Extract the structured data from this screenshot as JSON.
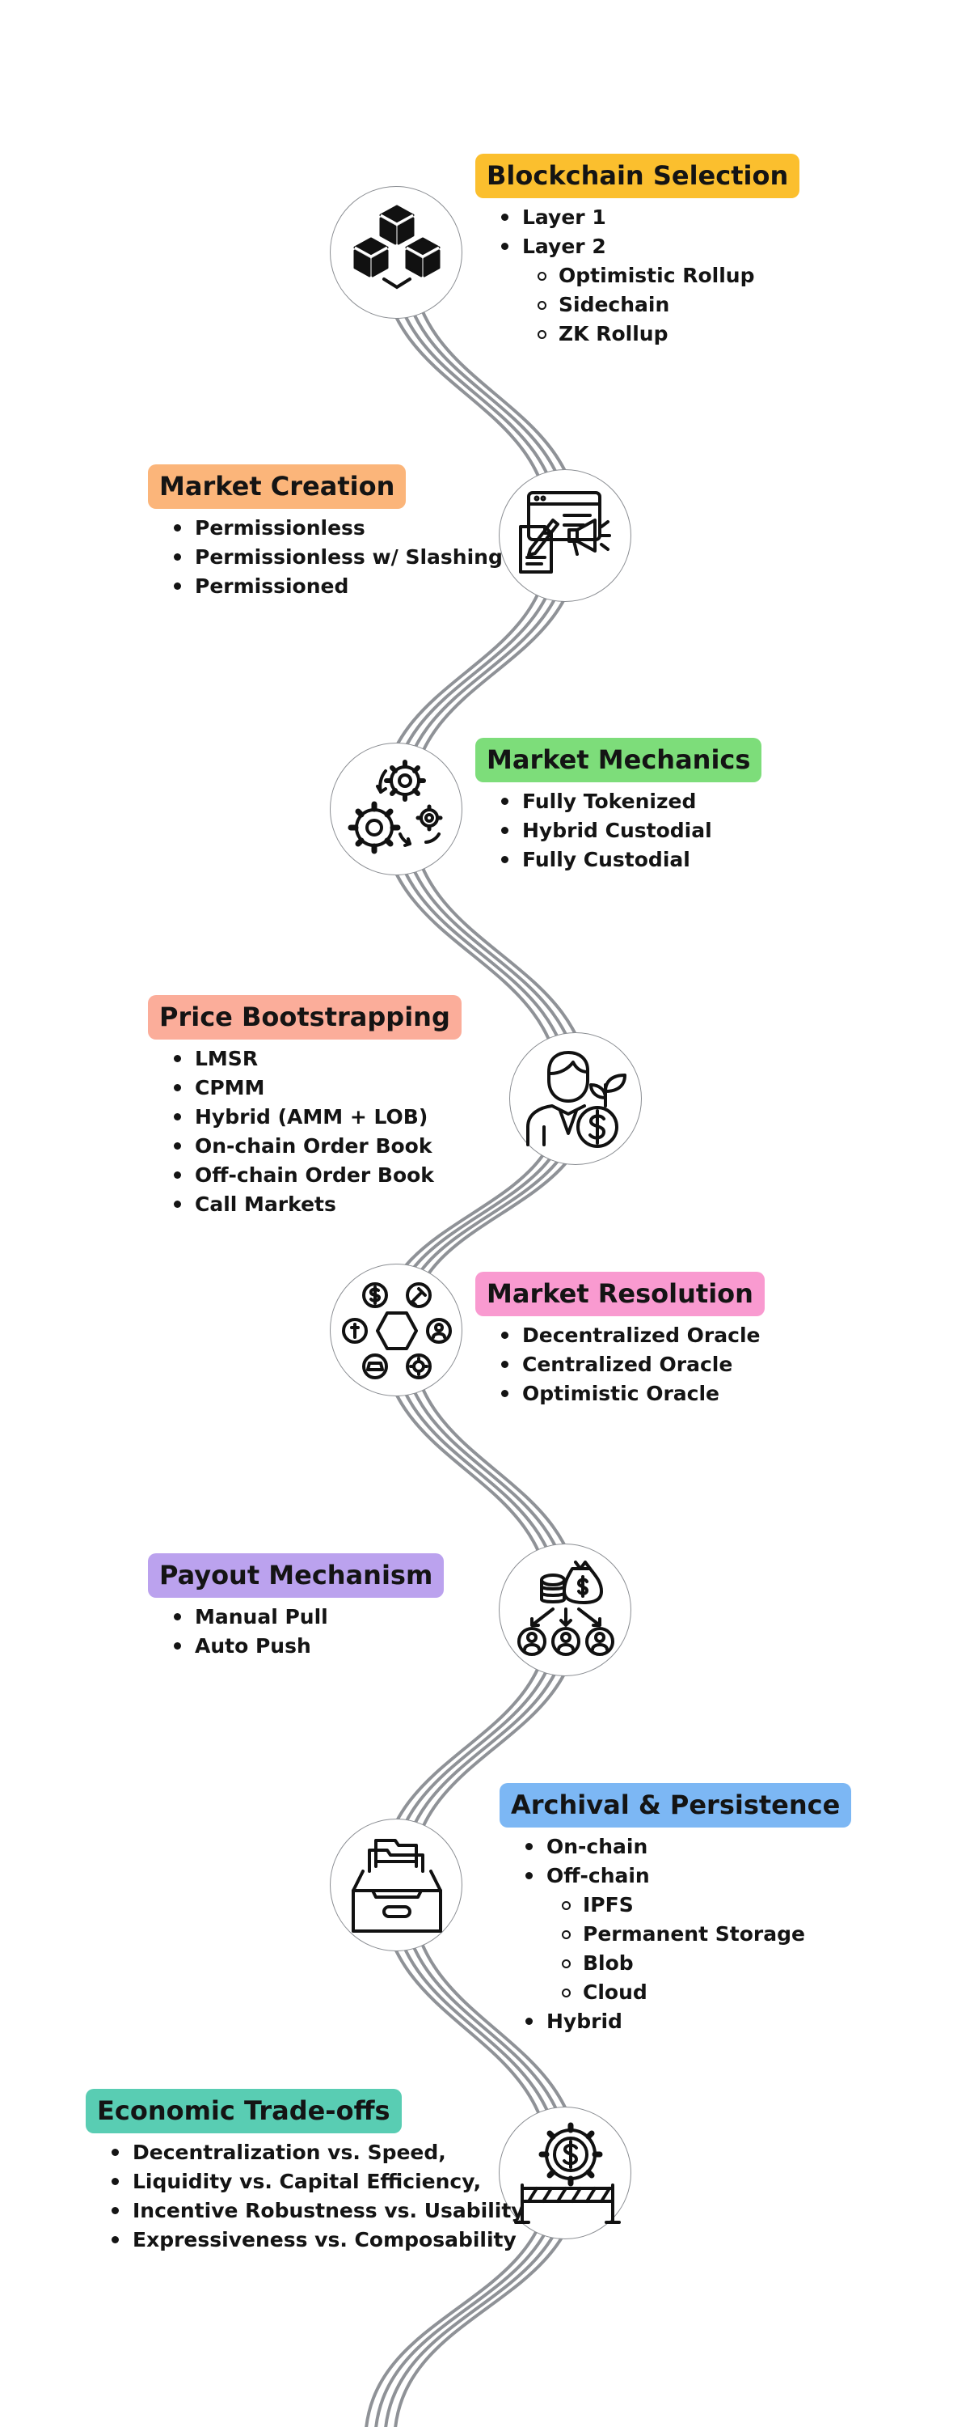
{
  "colors": {
    "road": "#8f9297",
    "blockchain": "#fbbf2e",
    "creation": "#fbb57a",
    "mechanics": "#7ddd7a",
    "bootstrapping": "#fbad9a",
    "resolution": "#f99ad0",
    "payout": "#bba2ee",
    "archival": "#7cb7f4",
    "economic": "#59cdb3"
  },
  "sections": [
    {
      "key": "blockchain",
      "icon": "cubes-icon",
      "title": "Blockchain Selection",
      "items": [
        {
          "text": "Layer 1",
          "level": 1
        },
        {
          "text": "Layer 2",
          "level": 1
        },
        {
          "text": "Optimistic Rollup",
          "level": 2
        },
        {
          "text": "Sidechain",
          "level": 2
        },
        {
          "text": "ZK Rollup",
          "level": 2
        }
      ]
    },
    {
      "key": "creation",
      "icon": "document-megaphone-icon",
      "title": "Market Creation",
      "items": [
        {
          "text": "Permissionless",
          "level": 1
        },
        {
          "text": "Permissionless w/ Slashing",
          "level": 1
        },
        {
          "text": "Permissioned",
          "level": 1
        }
      ]
    },
    {
      "key": "mechanics",
      "icon": "gears-icon",
      "title": "Market Mechanics",
      "items": [
        {
          "text": "Fully Tokenized",
          "level": 1
        },
        {
          "text": "Hybrid Custodial",
          "level": 1
        },
        {
          "text": "Fully Custodial",
          "level": 1
        }
      ]
    },
    {
      "key": "bootstrapping",
      "icon": "investor-sprout-icon",
      "title": "Price Bootstrapping",
      "items": [
        {
          "text": "LMSR",
          "level": 1
        },
        {
          "text": "CPMM",
          "level": 1
        },
        {
          "text": "Hybrid (AMM + LOB)",
          "level": 1
        },
        {
          "text": "On-chain Order Book",
          "level": 1
        },
        {
          "text": "Off-chain Order Book",
          "level": 1
        },
        {
          "text": "Call Markets",
          "level": 1
        }
      ]
    },
    {
      "key": "resolution",
      "icon": "hexagon-network-icon",
      "title": "Market Resolution",
      "items": [
        {
          "text": "Decentralized Oracle",
          "level": 1
        },
        {
          "text": "Centralized Oracle",
          "level": 1
        },
        {
          "text": "Optimistic Oracle",
          "level": 1
        }
      ]
    },
    {
      "key": "payout",
      "icon": "money-distribution-icon",
      "title": "Payout Mechanism",
      "items": [
        {
          "text": "Manual Pull",
          "level": 1
        },
        {
          "text": "Auto Push",
          "level": 1
        }
      ]
    },
    {
      "key": "archival",
      "icon": "file-drawer-icon",
      "title": "Archival & Persistence",
      "items": [
        {
          "text": "On-chain",
          "level": 1
        },
        {
          "text": "Off-chain",
          "level": 1
        },
        {
          "text": "IPFS",
          "level": 2
        },
        {
          "text": "Permanent Storage",
          "level": 2
        },
        {
          "text": "Blob",
          "level": 2
        },
        {
          "text": "Cloud",
          "level": 2
        },
        {
          "text": "Hybrid",
          "level": 1
        }
      ]
    },
    {
      "key": "economic",
      "icon": "dollar-gear-barrier-icon",
      "title": "Economic Trade-offs",
      "items": [
        {
          "text": "Decentralization vs. Speed,",
          "level": 1
        },
        {
          "text": "Liquidity vs. Capital Efficiency,",
          "level": 1
        },
        {
          "text": "Incentive Robustness vs. Usability",
          "level": 1
        },
        {
          "text": "Expressiveness vs. Composability",
          "level": 1
        }
      ]
    }
  ]
}
